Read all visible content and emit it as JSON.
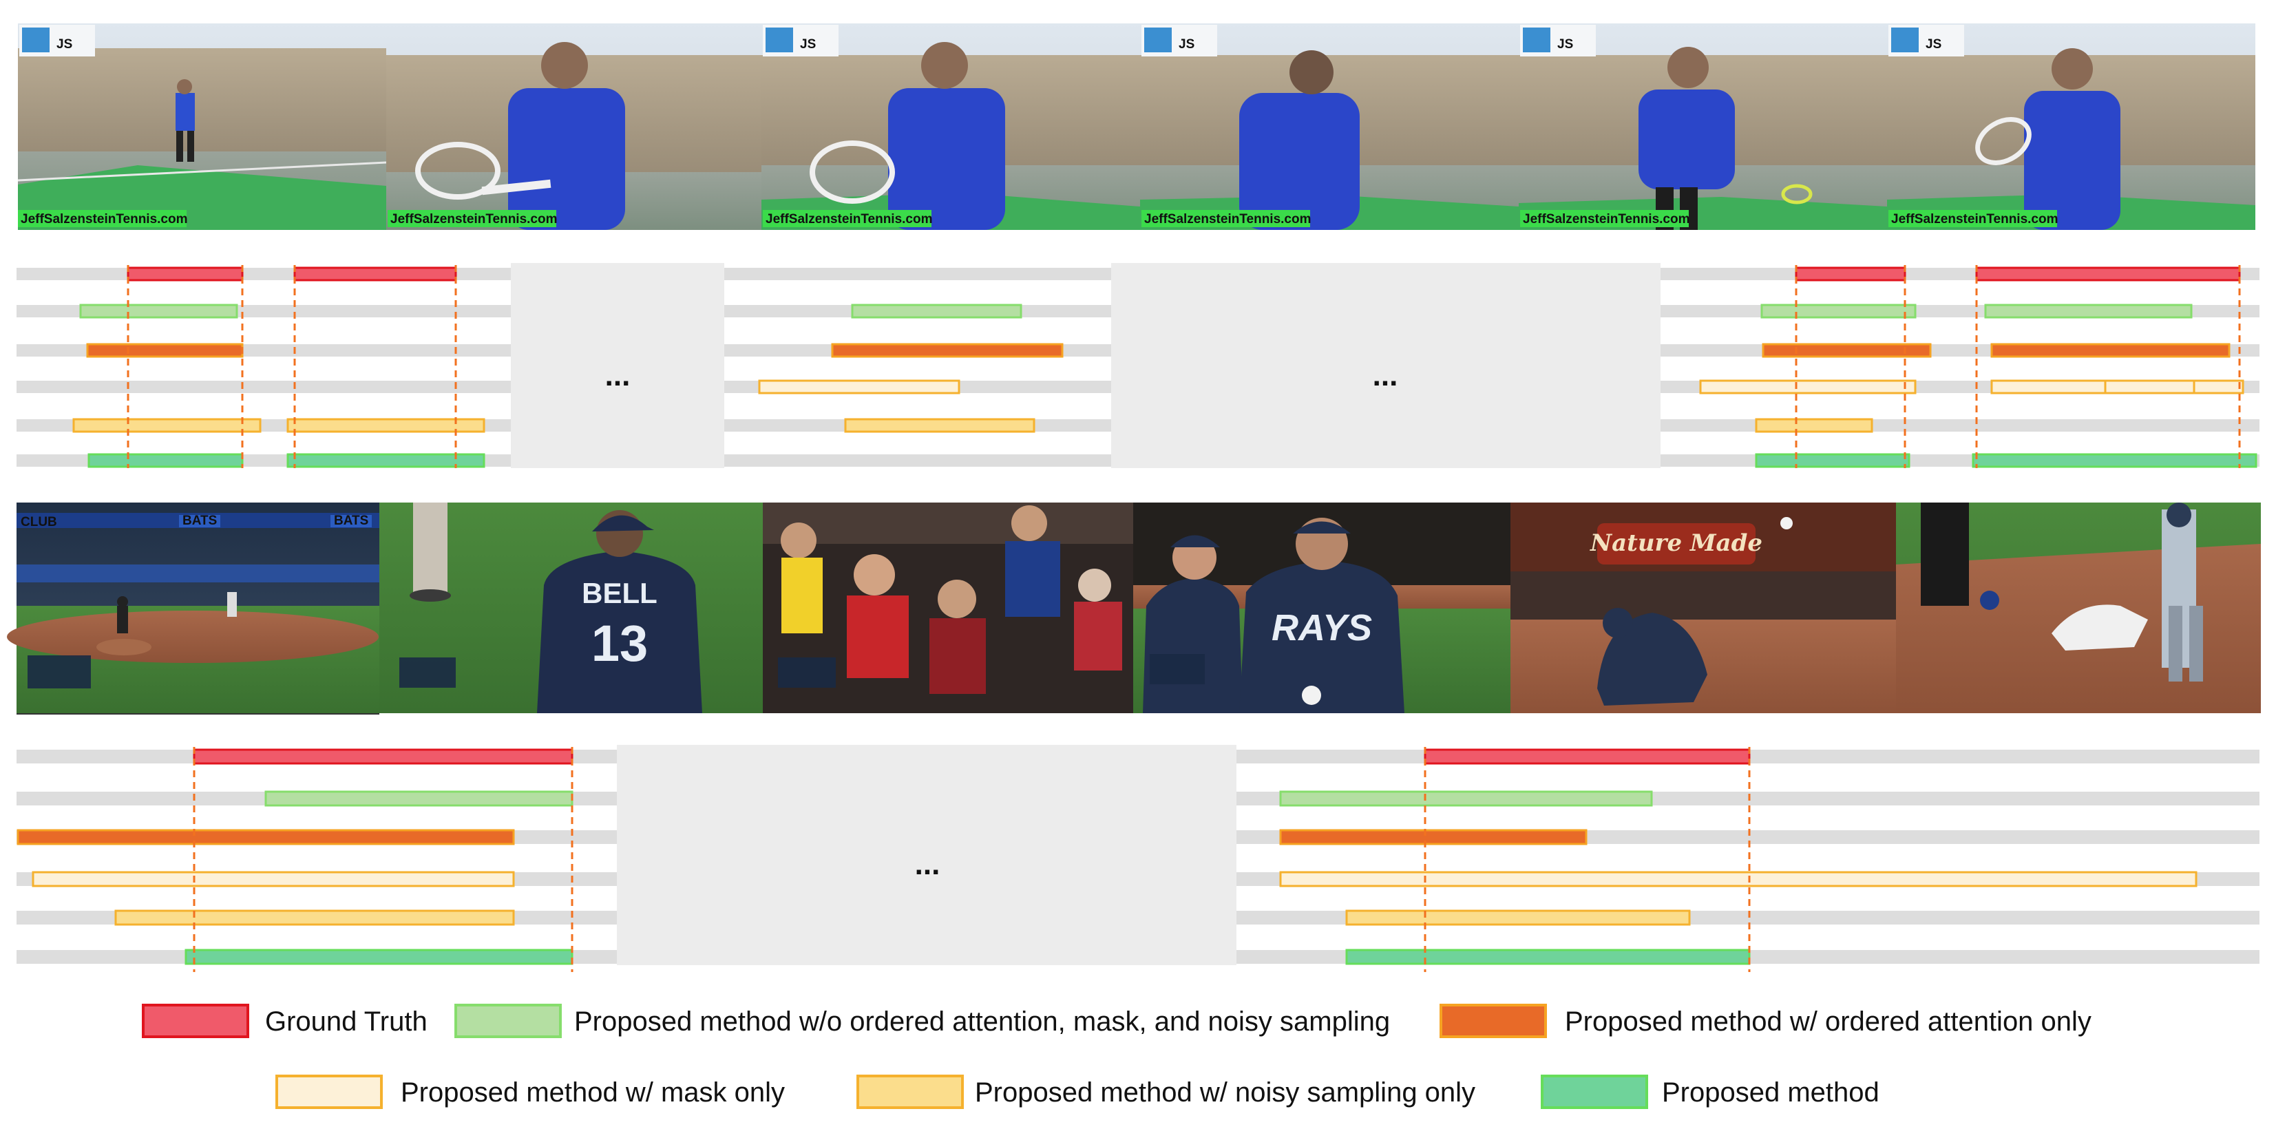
{
  "colors": {
    "ground_truth": "#f05a6a",
    "ground_truth_border": "#e0151f",
    "wo_all": "#b4dfa2",
    "wo_all_border": "#86dd6c",
    "ordered_attention": "#e86a28",
    "ordered_attention_border": "#f6a322",
    "mask_only": "#fdf1d8",
    "mask_only_border": "#f5b12e",
    "noisy_sampling": "#fbdd8c",
    "noisy_sampling_border": "#f5b12e",
    "proposed": "#6fd39a",
    "proposed_border": "#66dd5a",
    "track": "#dddddd",
    "gap": "#ececec",
    "boundary": "#f2711f"
  },
  "top_panel": {
    "watermark": "JeffSalzensteinTennis.com",
    "logo": "JS",
    "ellipsis": [
      "...",
      "..."
    ]
  },
  "bottom_panel": {
    "jersey_name": "BELL",
    "jersey_number": "13",
    "cap_team": "RAYS",
    "banner": "Nature Made",
    "board_left": "BATS",
    "board_right": "BATS",
    "club_sign": "CLUB",
    "ellipsis": "..."
  },
  "legend": {
    "items": [
      {
        "key": "ground_truth",
        "label": "Ground Truth"
      },
      {
        "key": "wo_all",
        "label": "Proposed method w/o ordered attention, mask, and noisy sampling"
      },
      {
        "key": "ordered_attention",
        "label": "Proposed method w/ ordered attention only"
      },
      {
        "key": "mask_only",
        "label": "Proposed method w/ mask only"
      },
      {
        "key": "noisy_sampling",
        "label": "Proposed method w/ noisy sampling only"
      },
      {
        "key": "proposed",
        "label": "Proposed method"
      }
    ]
  }
}
